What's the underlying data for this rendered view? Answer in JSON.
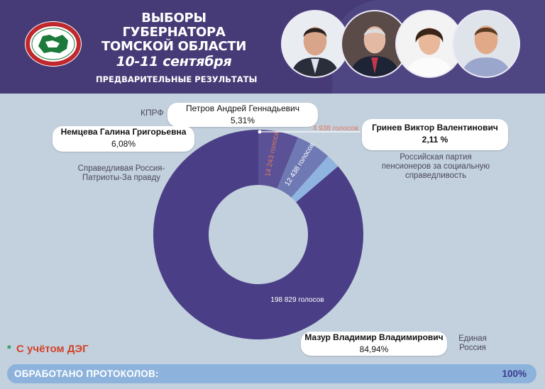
{
  "header": {
    "title_line1": "ВЫБОРЫ",
    "title_line2": "ГУБЕРНАТОРА",
    "title_line3": "ТОМСКОЙ ОБЛАСТИ",
    "dates": "10-11 сентября",
    "subtitle": "ПРЕДВАРИТЕЛЬНЫЕ РЕЗУЛЬТАТЫ",
    "emblem_icon": "election-commission-emblem"
  },
  "chart_data": {
    "type": "pie",
    "donut": true,
    "series": [
      {
        "name": "Мазур Владимир Владимирович",
        "party": "Единая Россия",
        "percent": 84.94,
        "votes": "198 829 голосов",
        "color": "#4a3f86"
      },
      {
        "name": "Немцева Галина Григорьевна",
        "party": "Справедливая Россия-Патриоты-За правду",
        "percent": 6.08,
        "votes": "14 243 голоса",
        "color": "#5a5196"
      },
      {
        "name": "Петров Андрей Геннадьевич",
        "party": "КПРФ",
        "percent": 5.31,
        "votes": "12 438 голосов",
        "color": "#6f7ab4"
      },
      {
        "name": "Гринев Виктор Валентинович",
        "party": "Российская партия пенсионеров за социальную справедливость",
        "percent": 2.11,
        "votes": "4 938 голосов",
        "color": "#8fb4e0"
      }
    ],
    "labels": {
      "mazur_pct": "84,94%",
      "nemtseva_pct": "6,08%",
      "petrov_pct": "5,31%",
      "grinev_pct": "2,11 %",
      "party_er_line1": "Единая",
      "party_er_line2": "Россия",
      "party_sr_line1": "Справедливая Россия-",
      "party_sr_line2": "Патриоты-За правду",
      "party_kprf": "КПРФ",
      "party_rpp_line1": "Российская партия",
      "party_rpp_line2": "пенсионеров за социальную",
      "party_rpp_line3": "справедливость"
    }
  },
  "footer": {
    "deg_star": "*",
    "deg_text": "С учётом ДЭГ",
    "protocols_label": "ОБРАБОТАНО ПРОТОКОЛОВ:",
    "protocols_value": "100%",
    "protocols_fraction": 1.0
  },
  "colors": {
    "header_bg": "#463b76",
    "page_bg": "#c3d0dd",
    "accent_red": "#d1452c"
  }
}
